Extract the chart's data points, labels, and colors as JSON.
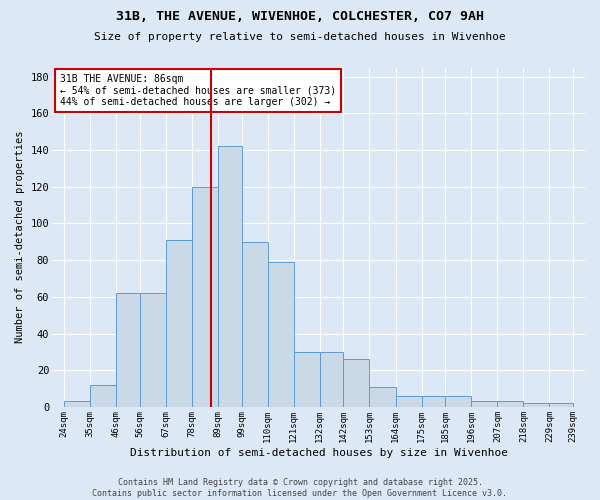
{
  "title1": "31B, THE AVENUE, WIVENHOE, COLCHESTER, CO7 9AH",
  "title2": "Size of property relative to semi-detached houses in Wivenhoe",
  "xlabel": "Distribution of semi-detached houses by size in Wivenhoe",
  "ylabel": "Number of semi-detached properties",
  "bin_labels": [
    "24sqm",
    "35sqm",
    "46sqm",
    "56sqm",
    "67sqm",
    "78sqm",
    "89sqm",
    "99sqm",
    "110sqm",
    "121sqm",
    "132sqm",
    "142sqm",
    "153sqm",
    "164sqm",
    "175sqm",
    "185sqm",
    "196sqm",
    "207sqm",
    "218sqm",
    "229sqm",
    "239sqm"
  ],
  "bar_heights": [
    3,
    12,
    62,
    62,
    91,
    120,
    142,
    90,
    79,
    30,
    30,
    26,
    11,
    6,
    6,
    6,
    3,
    3,
    2,
    2
  ],
  "bin_starts": [
    24,
    35,
    46,
    56,
    67,
    78,
    89,
    99,
    110,
    121,
    132,
    142,
    153,
    164,
    175,
    185,
    196,
    207,
    218,
    229
  ],
  "bin_ends": [
    35,
    46,
    56,
    67,
    78,
    89,
    99,
    110,
    121,
    132,
    142,
    153,
    164,
    175,
    185,
    196,
    207,
    218,
    229,
    239
  ],
  "property_value": 86,
  "property_label": "31B THE AVENUE: 86sqm",
  "annotation_line1": "← 54% of semi-detached houses are smaller (373)",
  "annotation_line2": "44% of semi-detached houses are larger (302) →",
  "bar_color": "#c9d9e8",
  "bar_edge_color": "#5b9bd5",
  "vline_color": "#cc0000",
  "annotation_box_edge": "#cc0000",
  "background_color": "#dce8f5",
  "grid_color": "#ffffff",
  "footer_text": "Contains HM Land Registry data © Crown copyright and database right 2025.\nContains public sector information licensed under the Open Government Licence v3.0.",
  "ylim": [
    0,
    185
  ],
  "xlim_left": 19,
  "xlim_right": 244,
  "yticks": [
    0,
    20,
    40,
    60,
    80,
    100,
    120,
    140,
    160,
    180
  ]
}
